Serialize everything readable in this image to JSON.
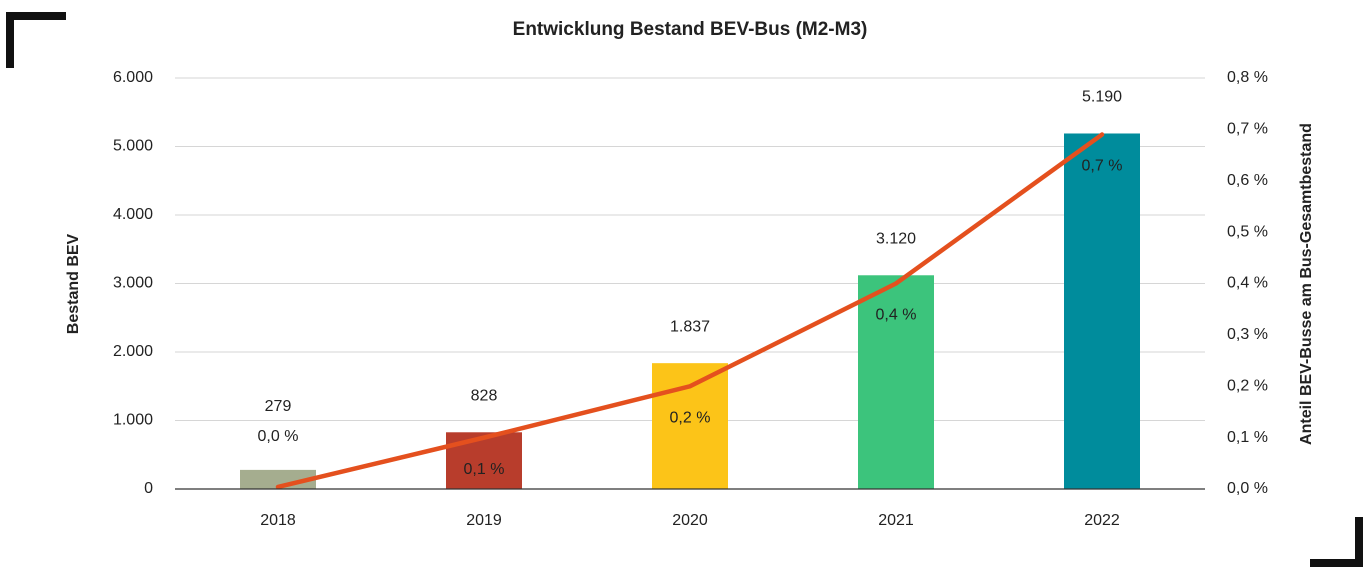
{
  "chart_data": {
    "type": "bar",
    "title": "Entwicklung Bestand BEV-Bus (M2-M3)",
    "categories": [
      "2018",
      "2019",
      "2020",
      "2021",
      "2022"
    ],
    "series": [
      {
        "name": "Bestand BEV",
        "type": "bar",
        "colors": [
          "#a5ad8f",
          "#b83d2c",
          "#fcc418",
          "#3cc47c",
          "#008c9c"
        ],
        "values": [
          279,
          828,
          1837,
          3120,
          5190
        ],
        "value_labels": [
          "279",
          "828",
          "1.837",
          "3.120",
          "5.190"
        ]
      },
      {
        "name": "Anteil BEV-Busse am Bus-Gesamtbestand",
        "type": "line",
        "axis": "y2",
        "color": "#e4501e",
        "values": [
          0.004,
          0.1,
          0.2,
          0.4,
          0.69
        ],
        "value_labels": [
          "0,0 %",
          "0,1 %",
          "0,2 %",
          "0,4 %",
          "0,7 %"
        ]
      }
    ],
    "ylabel": "Bestand BEV",
    "y2label": "Anteil BEV-Busse am Bus-Gesamtbestand",
    "ylim": [
      0,
      6000
    ],
    "yticks": [
      0,
      {
        "value": 1000,
        "label": "1.000"
      },
      {
        "value": 2000,
        "label": "2.000"
      },
      {
        "value": 3000,
        "label": "3.000"
      },
      {
        "value": 4000,
        "label": "4.000"
      },
      {
        "value": 5000,
        "label": "5.000"
      },
      {
        "value": 6000,
        "label": "6.000"
      }
    ],
    "y2lim": [
      0,
      0.8
    ],
    "y2ticks": [
      {
        "value": 0,
        "label": "0,0 %"
      },
      {
        "value": 0.1,
        "label": "0,1 %"
      },
      {
        "value": 0.2,
        "label": "0,2 %"
      },
      {
        "value": 0.3,
        "label": "0,3 %"
      },
      {
        "value": 0.4,
        "label": "0,4 %"
      },
      {
        "value": 0.5,
        "label": "0,5 %"
      },
      {
        "value": 0.6,
        "label": "0,6 %"
      },
      {
        "value": 0.7,
        "label": "0,7 %"
      },
      {
        "value": 0.8,
        "label": "0,8 %"
      }
    ],
    "grid": true
  }
}
